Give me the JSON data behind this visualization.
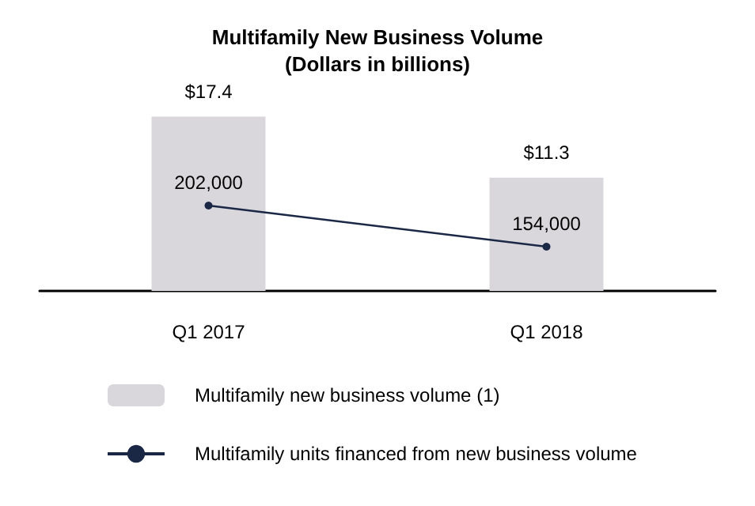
{
  "chart_data": {
    "type": "bar",
    "title": "Multifamily New Business Volume",
    "subtitle": "(Dollars in billions)",
    "categories": [
      "Q1 2017",
      "Q1 2018"
    ],
    "series": [
      {
        "name": "Multifamily new business volume (1)",
        "color": "#d9d7dc",
        "values": [
          17.4,
          11.3
        ],
        "value_labels": [
          "$17.4",
          "$11.3"
        ]
      },
      {
        "name": "Multifamily units financed from new business volume",
        "type": "line",
        "axis": "y2",
        "color": "#1b2845",
        "values": [
          202000,
          154000
        ],
        "value_labels": [
          "202,000",
          "154,000"
        ]
      }
    ],
    "grid": false,
    "legend": "bottom",
    "marker": "circle",
    "line_style": "solid",
    "tick_labels": "x"
  }
}
